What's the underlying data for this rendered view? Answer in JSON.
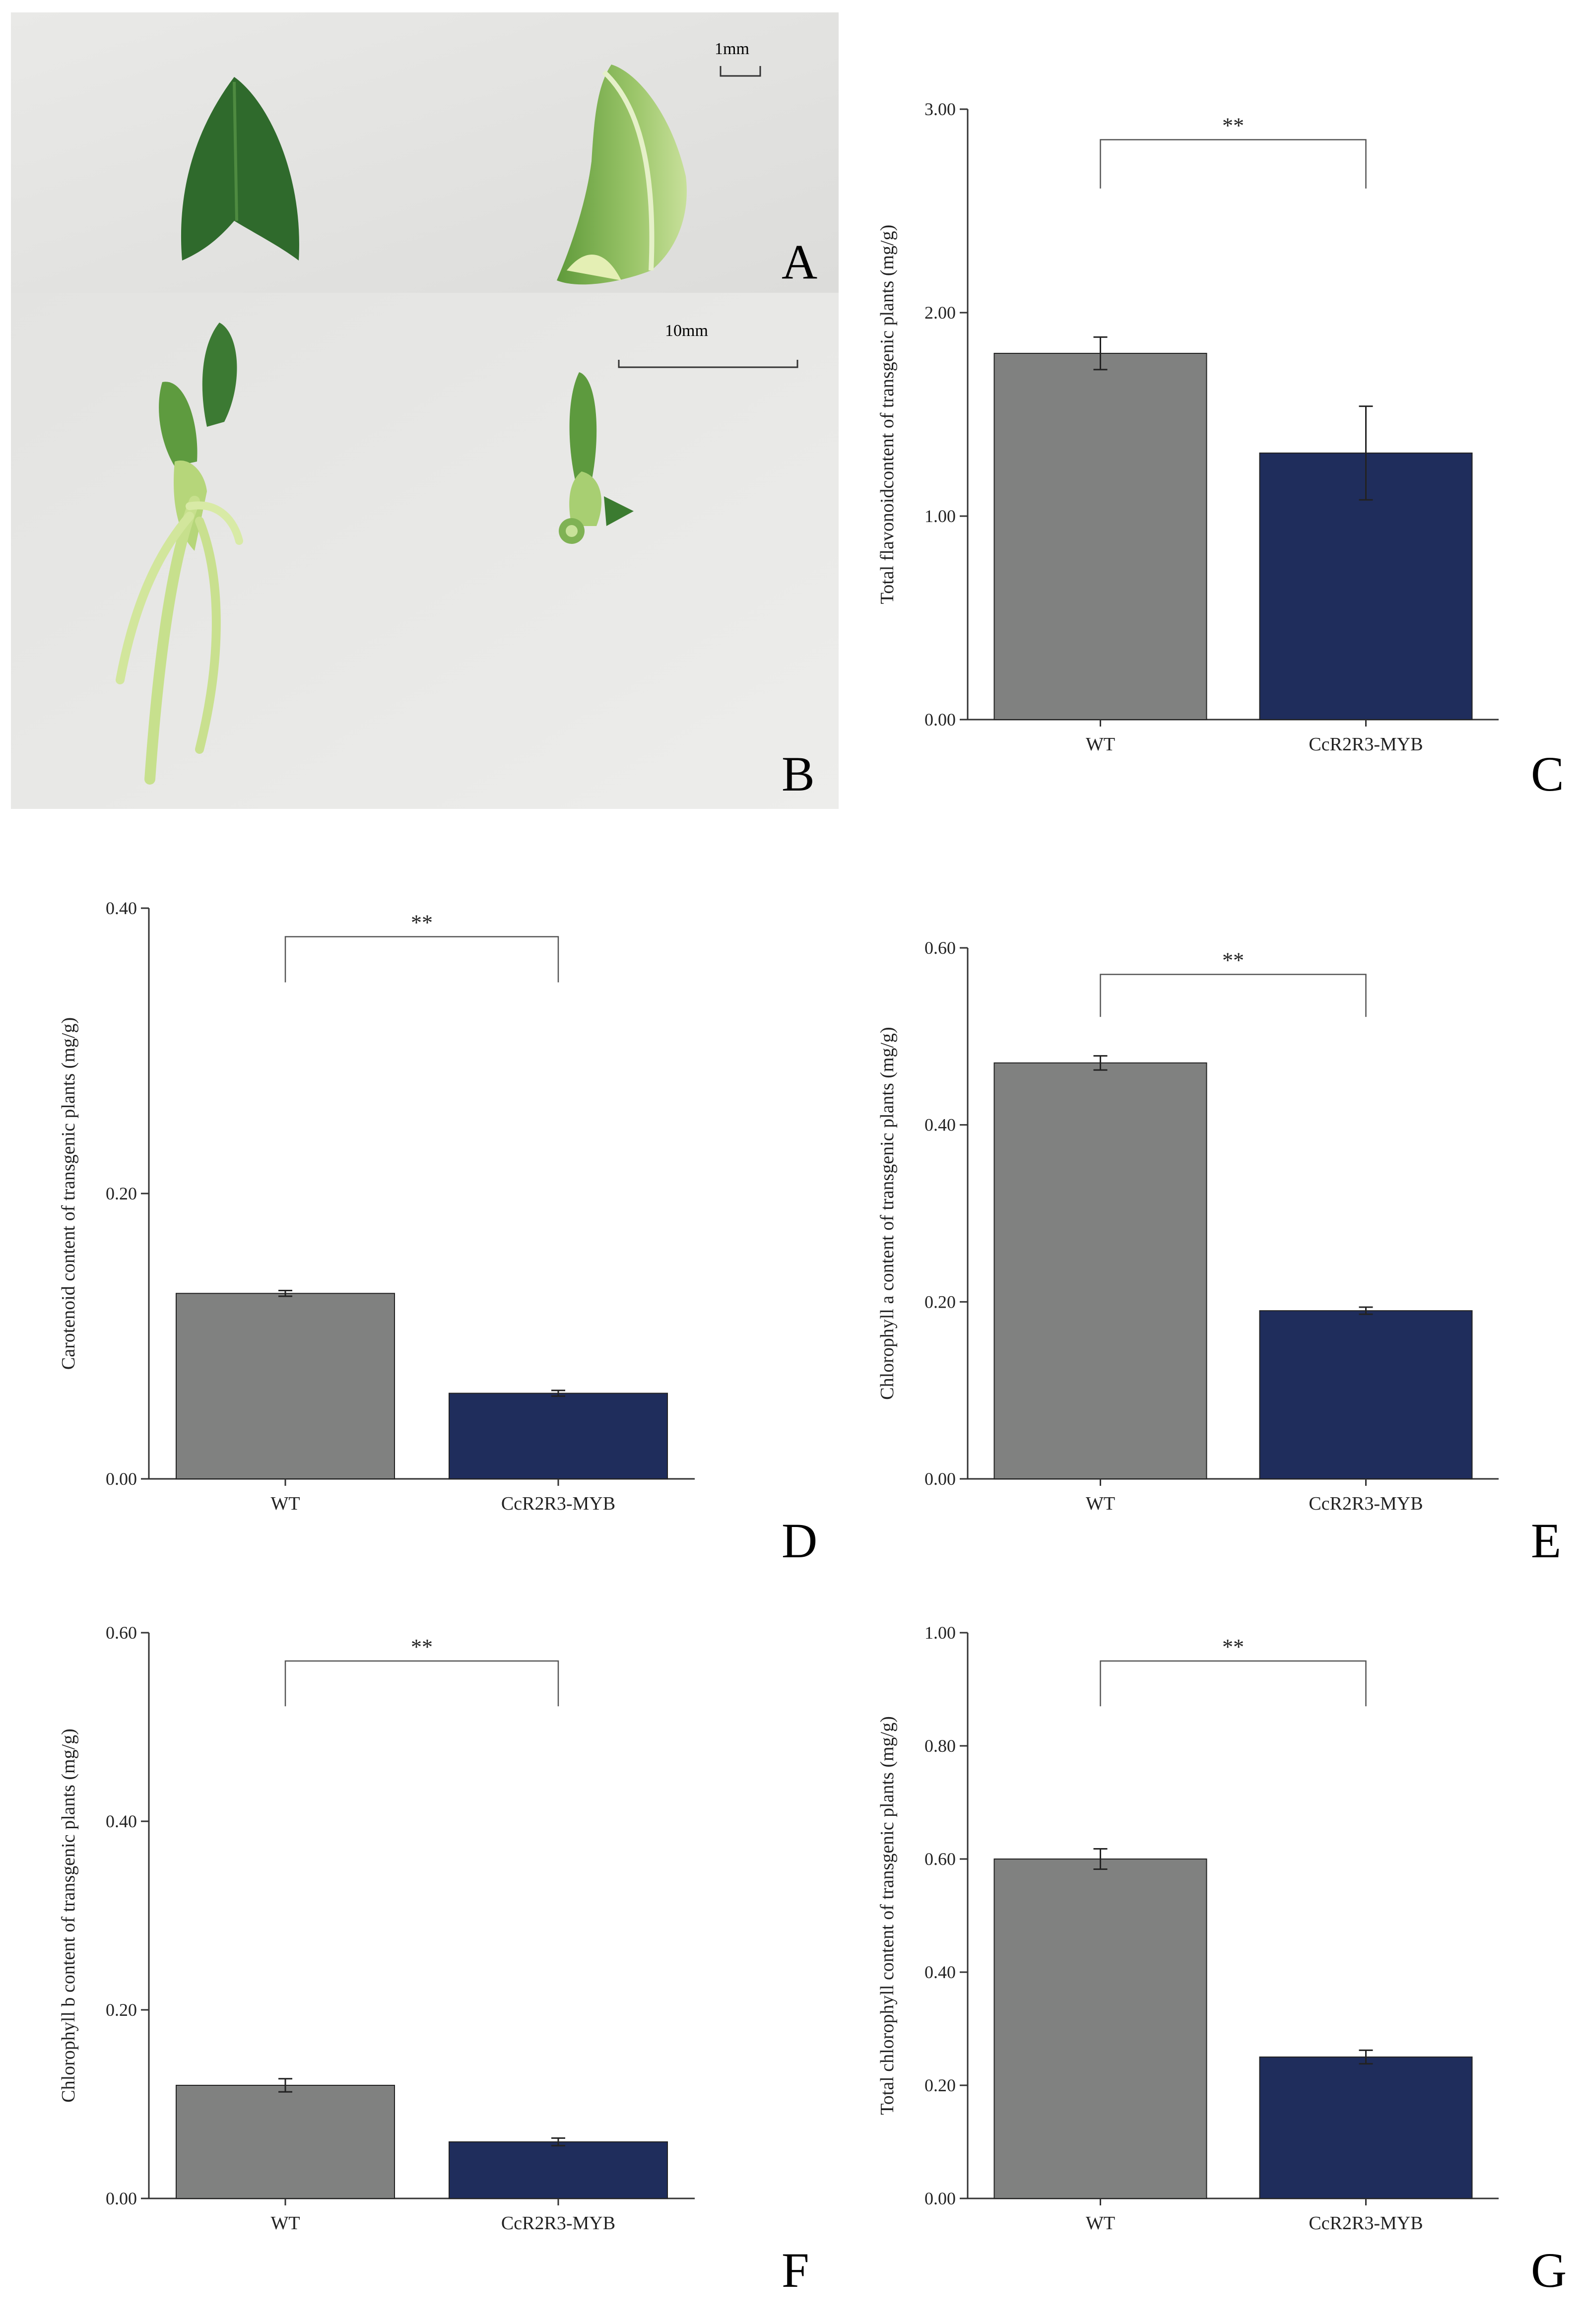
{
  "figure": {
    "panel_letters": [
      "A",
      "B",
      "C",
      "D",
      "E",
      "F",
      "G"
    ],
    "photo_a": {
      "scale_label": "1mm"
    },
    "photo_b": {
      "scale_label": "10mm"
    }
  },
  "colors": {
    "wt": "#808180",
    "transgenic": "#1f2d5c",
    "photo_bg": "#e6e6e4"
  },
  "chart_data": [
    {
      "panel": "C",
      "type": "bar",
      "categories": [
        "WT",
        "CcR2R3-MYB"
      ],
      "values": [
        1.8,
        1.31
      ],
      "errors": [
        0.08,
        0.23
      ],
      "ylabel": "Total flavonoidcontent of transgenic plants (mg/g)",
      "ylim": [
        0,
        3.0
      ],
      "yticks": [
        "0.00",
        "1.00",
        "2.00",
        "3.00"
      ],
      "significance": "**",
      "grid": false
    },
    {
      "panel": "D",
      "type": "bar",
      "categories": [
        "WT",
        "CcR2R3-MYB"
      ],
      "values": [
        0.13,
        0.06
      ],
      "errors": [
        0.002,
        0.002
      ],
      "ylabel": "Carotenoid content of transgenic plants (mg/g)",
      "ylim": [
        0,
        0.4
      ],
      "yticks": [
        "0.00",
        "0.20",
        "0.40"
      ],
      "significance": "**",
      "grid": false
    },
    {
      "panel": "E",
      "type": "bar",
      "categories": [
        "WT",
        "CcR2R3-MYB"
      ],
      "values": [
        0.47,
        0.19
      ],
      "errors": [
        0.008,
        0.004
      ],
      "ylabel": "Chlorophyll a content of transgenic plants (mg/g)",
      "ylim": [
        0,
        0.6
      ],
      "yticks": [
        "0.00",
        "0.20",
        "0.40",
        "0.60"
      ],
      "significance": "**",
      "grid": false
    },
    {
      "panel": "F",
      "type": "bar",
      "categories": [
        "WT",
        "CcR2R3-MYB"
      ],
      "values": [
        0.12,
        0.06
      ],
      "errors": [
        0.007,
        0.004
      ],
      "ylabel": "Chlorophyll b content of transgenic plants (mg/g)",
      "ylim": [
        0,
        0.6
      ],
      "yticks": [
        "0.00",
        "0.20",
        "0.40",
        "0.60"
      ],
      "significance": "**",
      "grid": false
    },
    {
      "panel": "G",
      "type": "bar",
      "categories": [
        "WT",
        "CcR2R3-MYB"
      ],
      "values": [
        0.6,
        0.25
      ],
      "errors": [
        0.018,
        0.012
      ],
      "ylabel": "Total chlorophyll content of transgenic plants (mg/g)",
      "ylim": [
        0,
        1.0
      ],
      "yticks": [
        "0.00",
        "0.20",
        "0.40",
        "0.60",
        "0.80",
        "1.00"
      ],
      "significance": "**",
      "grid": false
    }
  ]
}
